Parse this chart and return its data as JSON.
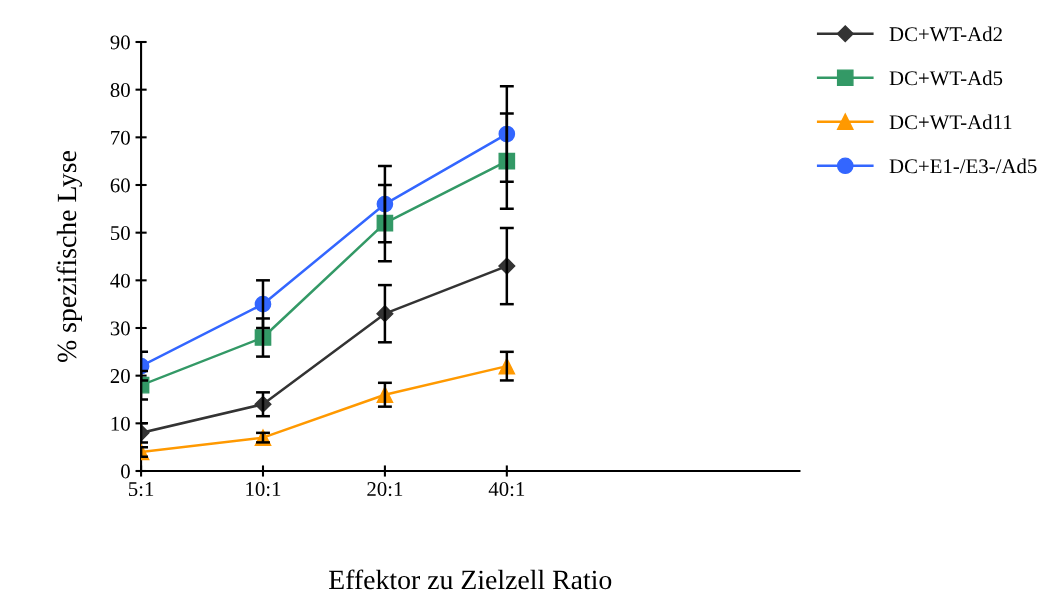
{
  "chart_data": {
    "type": "line",
    "xlabel": "Effektor zu Zielzell Ratio",
    "ylabel": "% spezifische Lyse",
    "categories": [
      "5:1",
      "10:1",
      "20:1",
      "40:1"
    ],
    "series": [
      {
        "name": "DC+WT-Ad2",
        "color": "#333333",
        "marker": "diamond",
        "values": [
          8,
          14,
          33,
          43
        ],
        "errors": [
          2,
          2.5,
          6,
          8
        ]
      },
      {
        "name": "DC+WT-Ad5",
        "color": "#339966",
        "marker": "square",
        "values": [
          18,
          28,
          52,
          65
        ],
        "errors": [
          3,
          4,
          8,
          10
        ]
      },
      {
        "name": "DC+WT-Ad11",
        "color": "#ff9900",
        "marker": "triangle",
        "values": [
          4,
          7,
          16,
          22
        ],
        "errors": [
          1,
          1,
          2.5,
          3
        ]
      },
      {
        "name": "DC+E1-/E3-/Ad5",
        "color": "#3366ff",
        "marker": "circle",
        "values": [
          22,
          35,
          56,
          70.7
        ],
        "errors": [
          3,
          5,
          8,
          10
        ]
      }
    ],
    "ylim": [
      0,
      90
    ],
    "yticks": [
      0,
      10,
      20,
      30,
      40,
      50,
      60,
      70,
      80,
      90
    ],
    "grid": false,
    "legend": "top right"
  }
}
